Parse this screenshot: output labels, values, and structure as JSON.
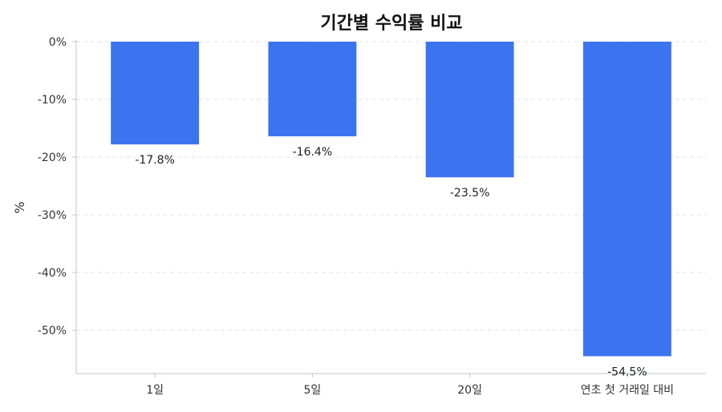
{
  "chart_data": {
    "type": "bar",
    "title": "기간별 수익률 비교",
    "xlabel": "",
    "ylabel": "%",
    "categories": [
      "1일",
      "5일",
      "20일",
      "연초 첫 거래일 대비"
    ],
    "values": [
      -17.8,
      -16.4,
      -23.5,
      -54.5
    ],
    "data_labels": [
      "-17.8%",
      "-16.4%",
      "-23.5%",
      "-54.5%"
    ],
    "ylim": [
      -57.5,
      0
    ],
    "yticks": [
      0,
      -10,
      -20,
      -30,
      -40,
      -50
    ],
    "ytick_labels": [
      "0%",
      "-10%",
      "-20%",
      "-30%",
      "-40%",
      "-50%"
    ],
    "grid": true,
    "colors": {
      "bar": "#3b74ee",
      "grid": "#dfe3ea",
      "axis": "#bfc4cc"
    }
  }
}
